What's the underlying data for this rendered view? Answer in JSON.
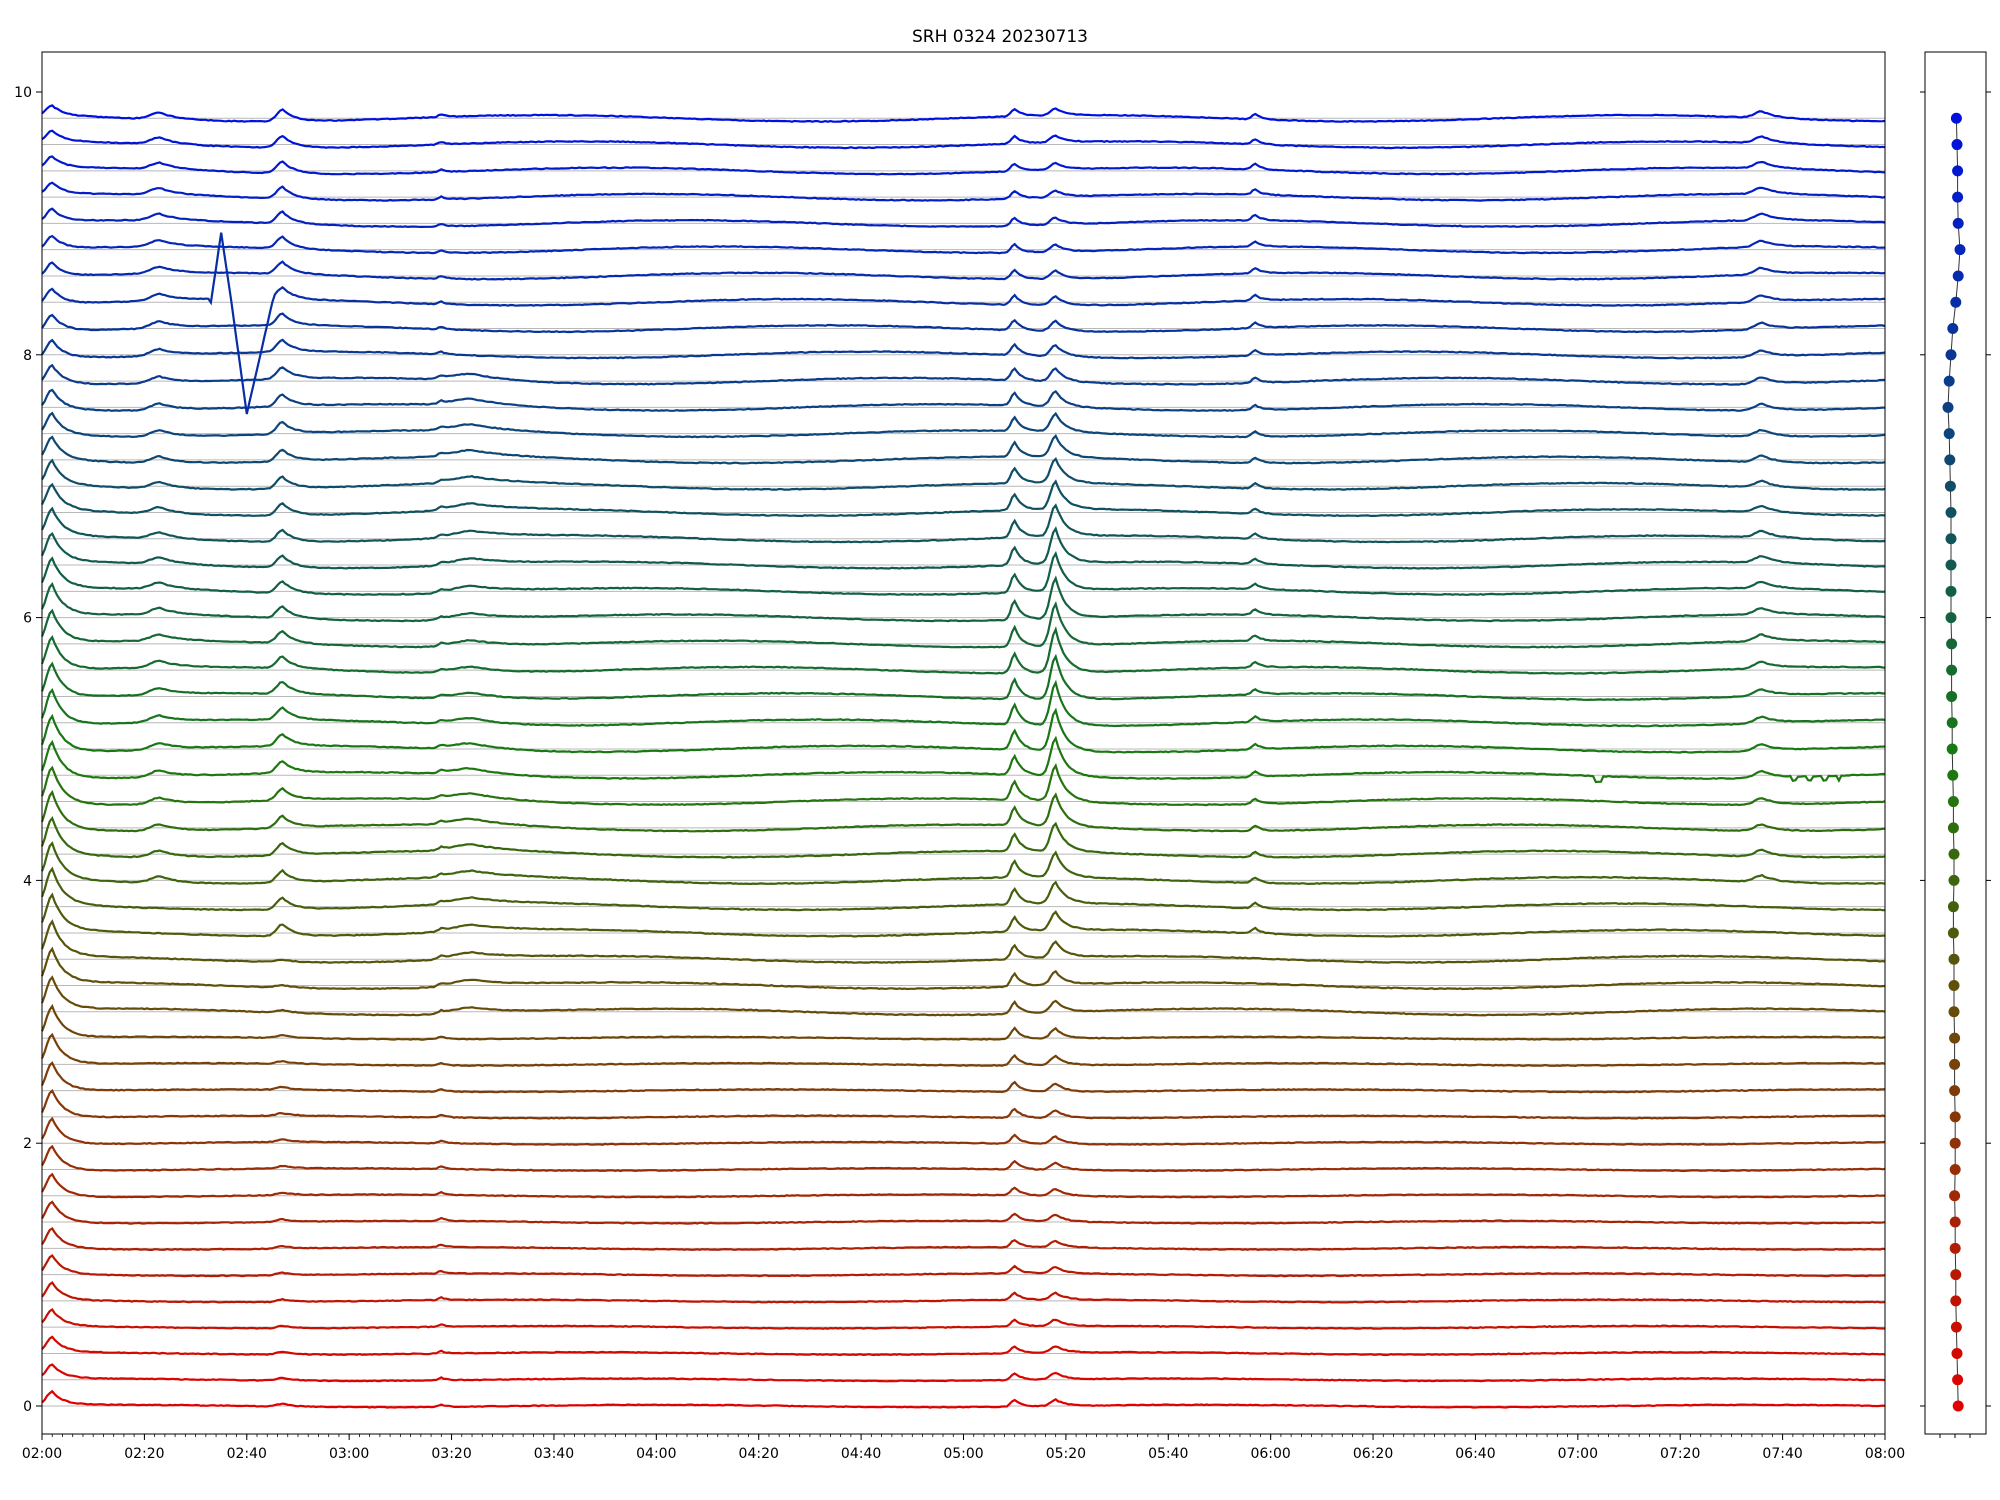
{
  "chart_data": {
    "type": "line",
    "title": "SRH 0324 20230713",
    "xlabel": "",
    "ylabel": "",
    "x_range": [
      "02:00",
      "08:00"
    ],
    "ylim": [
      0,
      10
    ],
    "x_tick_labels": [
      "02:00",
      "02:20",
      "02:40",
      "03:00",
      "03:20",
      "03:40",
      "04:00",
      "04:20",
      "04:40",
      "05:00",
      "05:20",
      "05:40",
      "06:00",
      "06:20",
      "06:40",
      "07:00",
      "07:20",
      "07:40",
      "08:00"
    ],
    "y_tick_labels": [
      "0",
      "2",
      "4",
      "6",
      "8",
      "10"
    ],
    "grid": "horizontal reference line at each series baseline",
    "legend": "none",
    "series_count": 50,
    "baseline_start": 0.0,
    "baseline_step": 0.2,
    "color_low": "#e00000",
    "color_mid": "#1a7a10",
    "color_high": "#0010e0",
    "common_events": [
      {
        "time": "02:07",
        "note": "sharp peak, largest in lower series"
      },
      {
        "time": "02:23",
        "note": "small bump in upper series"
      },
      {
        "time": "02:47",
        "note": "peak in upper series"
      },
      {
        "time": "03:18",
        "note": "small spike"
      },
      {
        "time": "03:24",
        "note": "broad bump in middle series"
      },
      {
        "time": "05:10",
        "note": "sharp peak"
      },
      {
        "time": "05:18",
        "note": "strong peak, largest in middle series"
      },
      {
        "time": "05:57",
        "note": "small spike in upper series"
      },
      {
        "time": "07:36",
        "note": "bump in upper series"
      }
    ],
    "anomalies": [
      {
        "series_index": 42,
        "time": "02:35",
        "value": 8.93,
        "note": "spike then dip to about 7.55 near 02:40"
      },
      {
        "series_index": 24,
        "time": "07:04",
        "value": 4.75,
        "note": "dip"
      },
      {
        "series_index": 24,
        "time": "07:40-07:51",
        "note": "glitch steps"
      }
    ],
    "side_panel": {
      "type": "scatter",
      "description": "one marker per series at its baseline, connected by a line",
      "x_offsets": [
        0.02,
        0.01,
        0.0,
        -0.01,
        -0.02,
        -0.02,
        -0.03,
        -0.03,
        -0.04,
        -0.03,
        -0.03,
        -0.03,
        -0.04,
        -0.04,
        -0.04,
        -0.05,
        -0.05,
        -0.05,
        -0.06,
        -0.06,
        -0.05,
        -0.05,
        -0.06,
        -0.06,
        -0.07,
        -0.08,
        -0.08,
        -0.09,
        -0.09,
        -0.09,
        -0.1,
        -0.1,
        -0.1,
        -0.1,
        -0.1,
        -0.11,
        -0.12,
        -0.13,
        -0.15,
        -0.13,
        -0.1,
        -0.07,
        -0.02,
        0.02,
        0.05,
        0.02,
        0.01,
        0.01,
        0.0,
        -0.01
      ]
    }
  }
}
